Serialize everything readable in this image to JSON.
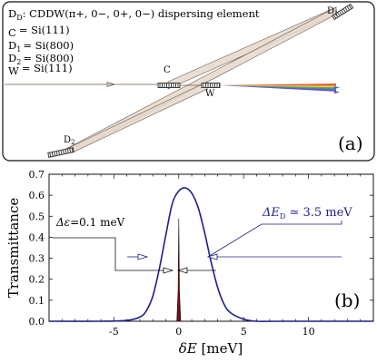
{
  "panel_a": {
    "header": "D",
    "header_sub": "D",
    "header_rest": ": CDDW(π+, 0−, 0+, 0−) dispersing element",
    "legend": [
      {
        "name": "C",
        "sub": "",
        "value": "= Si(111)"
      },
      {
        "name": "D",
        "sub": "1",
        "value": "= Si(800)"
      },
      {
        "name": "D",
        "sub": "2",
        "value": "= Si(800)"
      },
      {
        "name": "W",
        "sub": "",
        "value": "= Si(111)"
      }
    ],
    "crystal_labels": {
      "c": "C",
      "w": "W",
      "d1": "D",
      "d1_sub": "1",
      "d2": "D",
      "d2_sub": "2"
    },
    "panel_tag": "(a)",
    "colors": {
      "beam_fill": "#e6d8cc",
      "beam_stroke": "#6b5a4a",
      "crystal": "#3c3c3c",
      "spectrum": [
        "#d92b2b",
        "#f07f1e",
        "#f2d21e",
        "#3bb13b",
        "#2a6fd6",
        "#6a3ab8"
      ]
    }
  },
  "panel_b": {
    "panel_tag": "(b)",
    "annotation_narrow": {
      "symbol": "Δε",
      "text": "=0.1 meV"
    },
    "annotation_wide": {
      "symbol": "ΔE",
      "sub": "D",
      "text": " ≃ 3.5 meV"
    },
    "colors": {
      "curve": "#1f1f8c",
      "narrow_fill": "#7a0d0d",
      "annotation": "#1f1f8c"
    }
  },
  "chart_data": {
    "type": "line",
    "xlabel": "δE [meV]",
    "ylabel": "Transmittance",
    "xlim": [
      -10,
      15
    ],
    "ylim": [
      0,
      0.7
    ],
    "xticks": [
      -5,
      0,
      5,
      10
    ],
    "yticks": [
      0.0,
      0.1,
      0.2,
      0.3,
      0.4,
      0.5,
      0.6,
      0.7
    ],
    "series": [
      {
        "x": [
          -10,
          -6,
          -4,
          -3,
          -2.5,
          -2,
          -1.5,
          -1,
          -0.5,
          0,
          0.5,
          1,
          1.5,
          2,
          2.5,
          3,
          3.5,
          4,
          5,
          6,
          8,
          15
        ],
        "values": [
          0,
          0.0,
          0.004,
          0.02,
          0.05,
          0.12,
          0.25,
          0.41,
          0.56,
          0.62,
          0.635,
          0.61,
          0.54,
          0.42,
          0.28,
          0.16,
          0.08,
          0.04,
          0.01,
          0.0,
          0.0,
          0.0
        ]
      },
      {
        "x": [
          -0.15,
          -0.05,
          0,
          0.05,
          0.15
        ],
        "values": [
          0,
          0.15,
          0.49,
          0.15,
          0
        ]
      }
    ]
  }
}
